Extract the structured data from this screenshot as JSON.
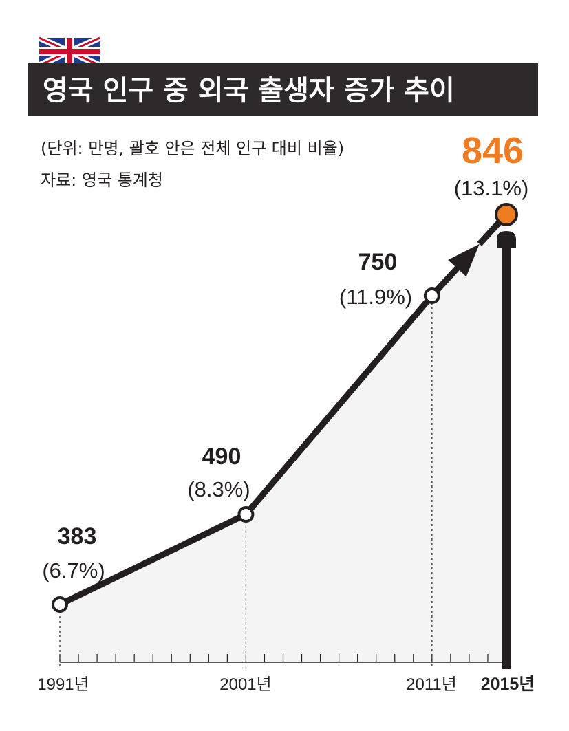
{
  "header": {
    "title": "영국 인구 중 외국 출생자 증가 추이",
    "flag_icon": "uk-flag-icon"
  },
  "notes": {
    "unit": "(단위: 만명,  괄호 안은 전체 인구 대비 비율)",
    "source": "자료: 영국 통계청"
  },
  "colors": {
    "title_bar": "#2e2a2b",
    "line": "#231f20",
    "highlight": "#f07c22",
    "area_fill": "#f4f4f4"
  },
  "chart_data": {
    "type": "line",
    "title": "영국 인구 중 외국 출생자 증가 추이",
    "xlabel": "",
    "ylabel": "",
    "x": [
      1991,
      2001,
      2011,
      2015
    ],
    "x_labels": [
      "1991년",
      "2001년",
      "2011년",
      "2015년"
    ],
    "series": [
      {
        "values": [
          383,
          490,
          750,
          846
        ],
        "value_labels": [
          "383",
          "490",
          "750",
          "846"
        ],
        "percent_labels": [
          "(6.7%)",
          "(8.3%)",
          "(11.9%)",
          "(13.1%)"
        ]
      }
    ],
    "xlim": [
      1991,
      2015
    ],
    "ylim": [
      300,
      900
    ],
    "grid": false,
    "legend": "none",
    "highlight_index": 3,
    "highlight_icon": "person-icon"
  }
}
